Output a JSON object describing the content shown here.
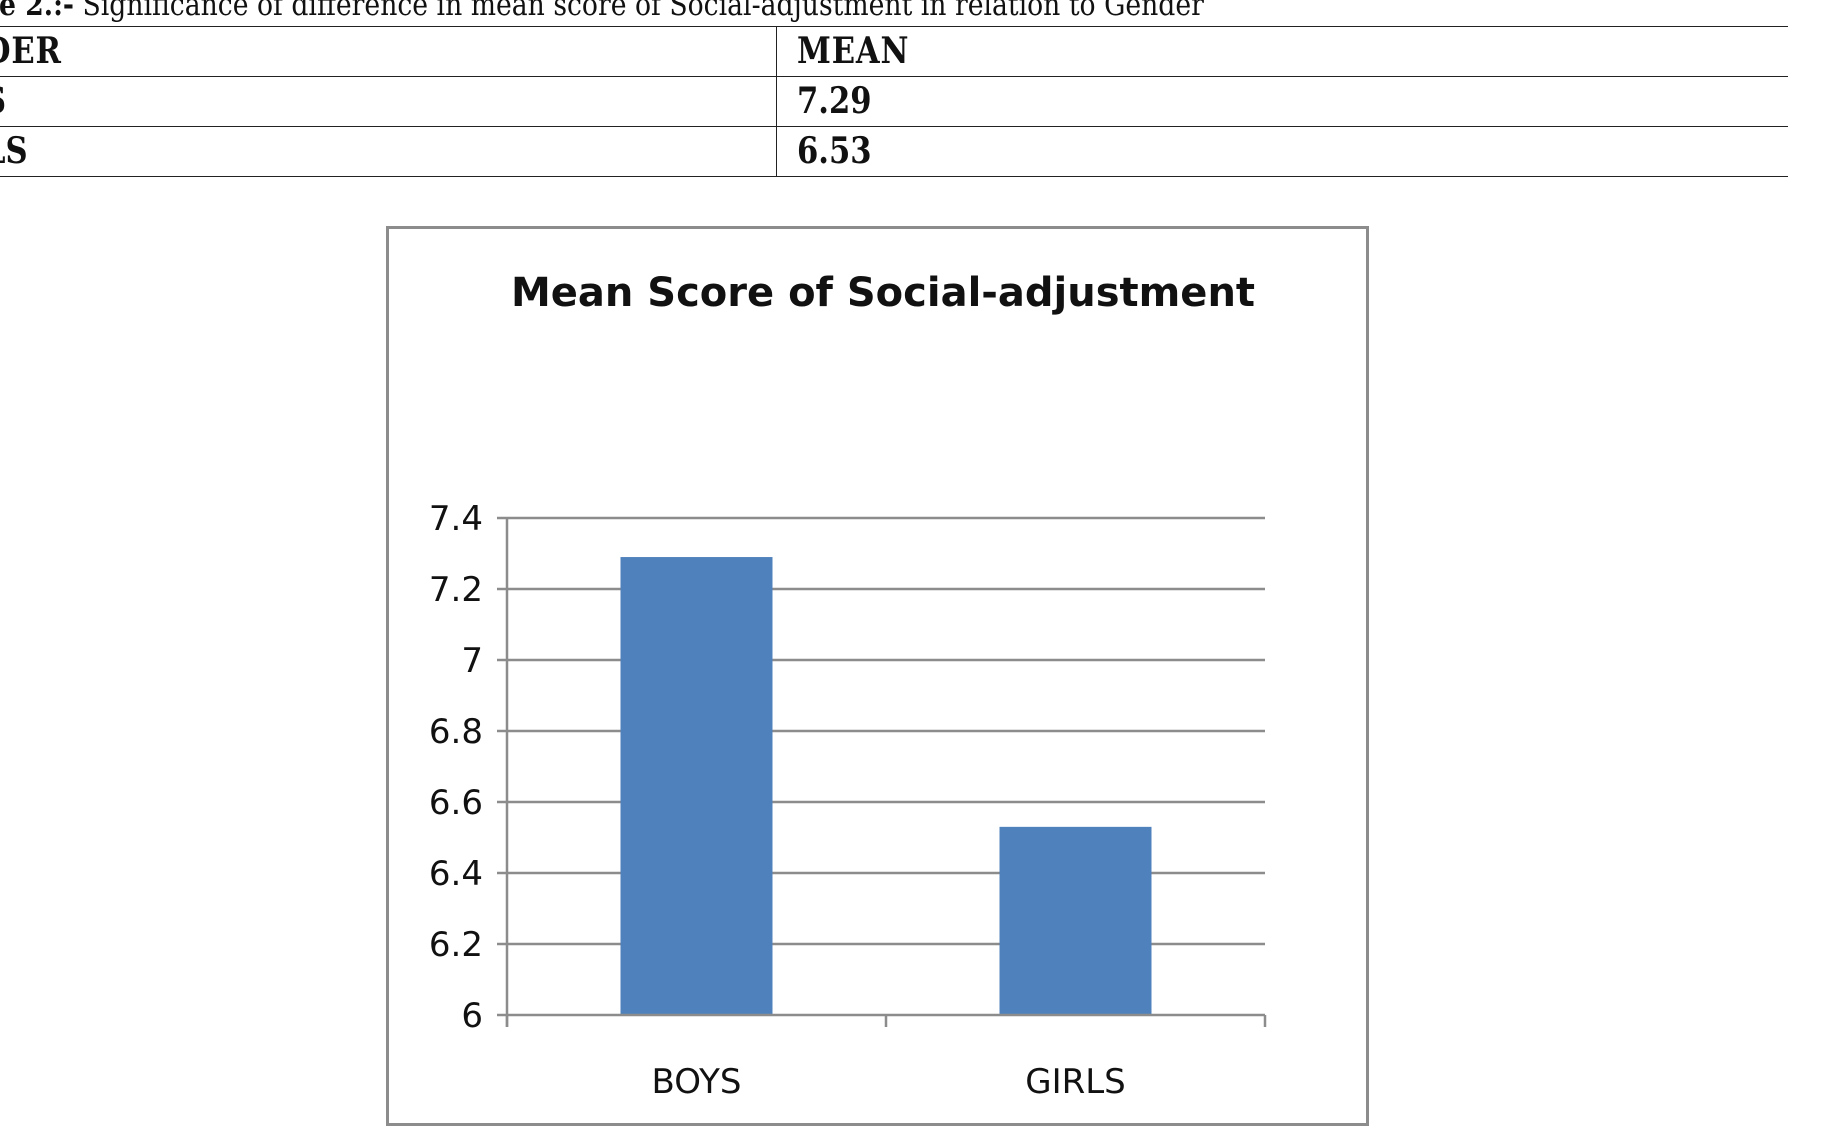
{
  "caption": {
    "prefix": "e 2.:-",
    "text": "Significance of difference in mean score of Social-adjustment in relation to Gender"
  },
  "table": {
    "headers": [
      "DER",
      "MEAN"
    ],
    "rows": [
      [
        "S",
        "7.29"
      ],
      [
        "LS",
        "6.53"
      ]
    ]
  },
  "chart_data": {
    "type": "bar",
    "title": "Mean Score of Social-adjustment",
    "categories": [
      "BOYS",
      "GIRLS"
    ],
    "values": [
      7.29,
      6.53
    ],
    "xlabel": "",
    "ylabel": "",
    "ylim": [
      6,
      7.4
    ],
    "yticks": [
      "6",
      "6.2",
      "6.4",
      "6.6",
      "6.8",
      "7",
      "7.2",
      "7.4"
    ],
    "grid": true,
    "legend": "none",
    "bar_color": "#4f81bd",
    "grid_color": "#8c8c8c"
  }
}
